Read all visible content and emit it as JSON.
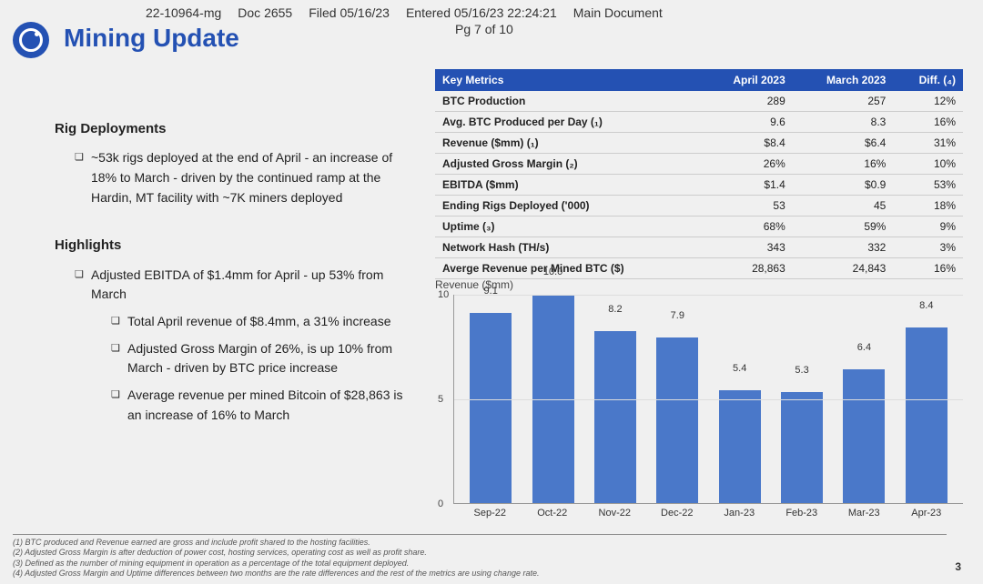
{
  "header": {
    "case": "22-10964-mg",
    "doc": "Doc 2655",
    "filed": "Filed 05/16/23",
    "entered": "Entered 05/16/23 22:24:21",
    "main": "Main Document",
    "pg": "Pg 7 of 10"
  },
  "title": "Mining Update",
  "left": {
    "rig_h": "Rig Deployments",
    "rig_b1": "~53k rigs deployed at the end of April - an increase of 18% to March - driven by the continued ramp at the Hardin, MT facility with ~7K miners deployed",
    "hi_h": "Highlights",
    "hi_b1": "Adjusted EBITDA of $1.4mm for April - up 53% from March",
    "hi_b1a": "Total April revenue of $8.4mm, a 31% increase",
    "hi_b1b": "Adjusted Gross Margin of 26%, is up 10% from March - driven by BTC price increase",
    "hi_b1c": "Average revenue per mined Bitcoin of $28,863 is an increase of 16% to March"
  },
  "table": {
    "headers": {
      "c0": "Key Metrics",
      "c1": "April 2023",
      "c2": "March 2023",
      "c3": "Diff. (₄)"
    },
    "rows": [
      {
        "l": "BTC Production",
        "a": "289",
        "m": "257",
        "d": "12%"
      },
      {
        "l": "Avg. BTC Produced per Day  (₁)",
        "a": "9.6",
        "m": "8.3",
        "d": "16%"
      },
      {
        "l": "Revenue ($mm)  (₁)",
        "a": "$8.4",
        "m": "$6.4",
        "d": "31%"
      },
      {
        "l": "Adjusted Gross Margin (₂)",
        "a": "26%",
        "m": "16%",
        "d": "10%"
      },
      {
        "l": "EBITDA ($mm)",
        "a": "$1.4",
        "m": "$0.9",
        "d": "53%"
      },
      {
        "l": "Ending Rigs Deployed ('000)",
        "a": "53",
        "m": "45",
        "d": "18%"
      },
      {
        "l": "Uptime (₃)",
        "a": "68%",
        "m": "59%",
        "d": "9%"
      },
      {
        "l": "Network Hash (TH/s)",
        "a": "343",
        "m": "332",
        "d": "3%"
      },
      {
        "l": "Averge Revenue per Mined BTC ($)",
        "a": "28,863",
        "m": "24,843",
        "d": "16%"
      }
    ]
  },
  "chart": {
    "type": "bar",
    "title": "Revenue ($mm)",
    "ylim": [
      0,
      10
    ],
    "yticks": [
      0,
      5,
      10
    ],
    "bar_color": "#4a78c9",
    "grid_color": "#dddddd",
    "axis_color": "#999999",
    "categories": [
      "Sep-22",
      "Oct-22",
      "Nov-22",
      "Dec-22",
      "Jan-23",
      "Feb-23",
      "Mar-23",
      "Apr-23"
    ],
    "values": [
      9.1,
      10.0,
      8.2,
      7.9,
      5.4,
      5.3,
      6.4,
      8.4
    ],
    "value_labels": [
      "9.1",
      "10.0",
      "8.2",
      "7.9",
      "5.4",
      "5.3",
      "6.4",
      "8.4"
    ]
  },
  "footnotes": {
    "f1": "(1) BTC produced and Revenue earned are gross and include profit shared to the hosting facilities.",
    "f2": "(2) Adjusted Gross Margin is after deduction of power cost, hosting services, operating cost as well as profit share.",
    "f3": "(3) Defined as the number of mining equipment in operation as a percentage of the total equipment deployed.",
    "f4": "(4) Adjusted Gross Margin and Uptime differences between two months are the rate differences and the rest of the metrics are using change rate."
  },
  "page_number": "3"
}
